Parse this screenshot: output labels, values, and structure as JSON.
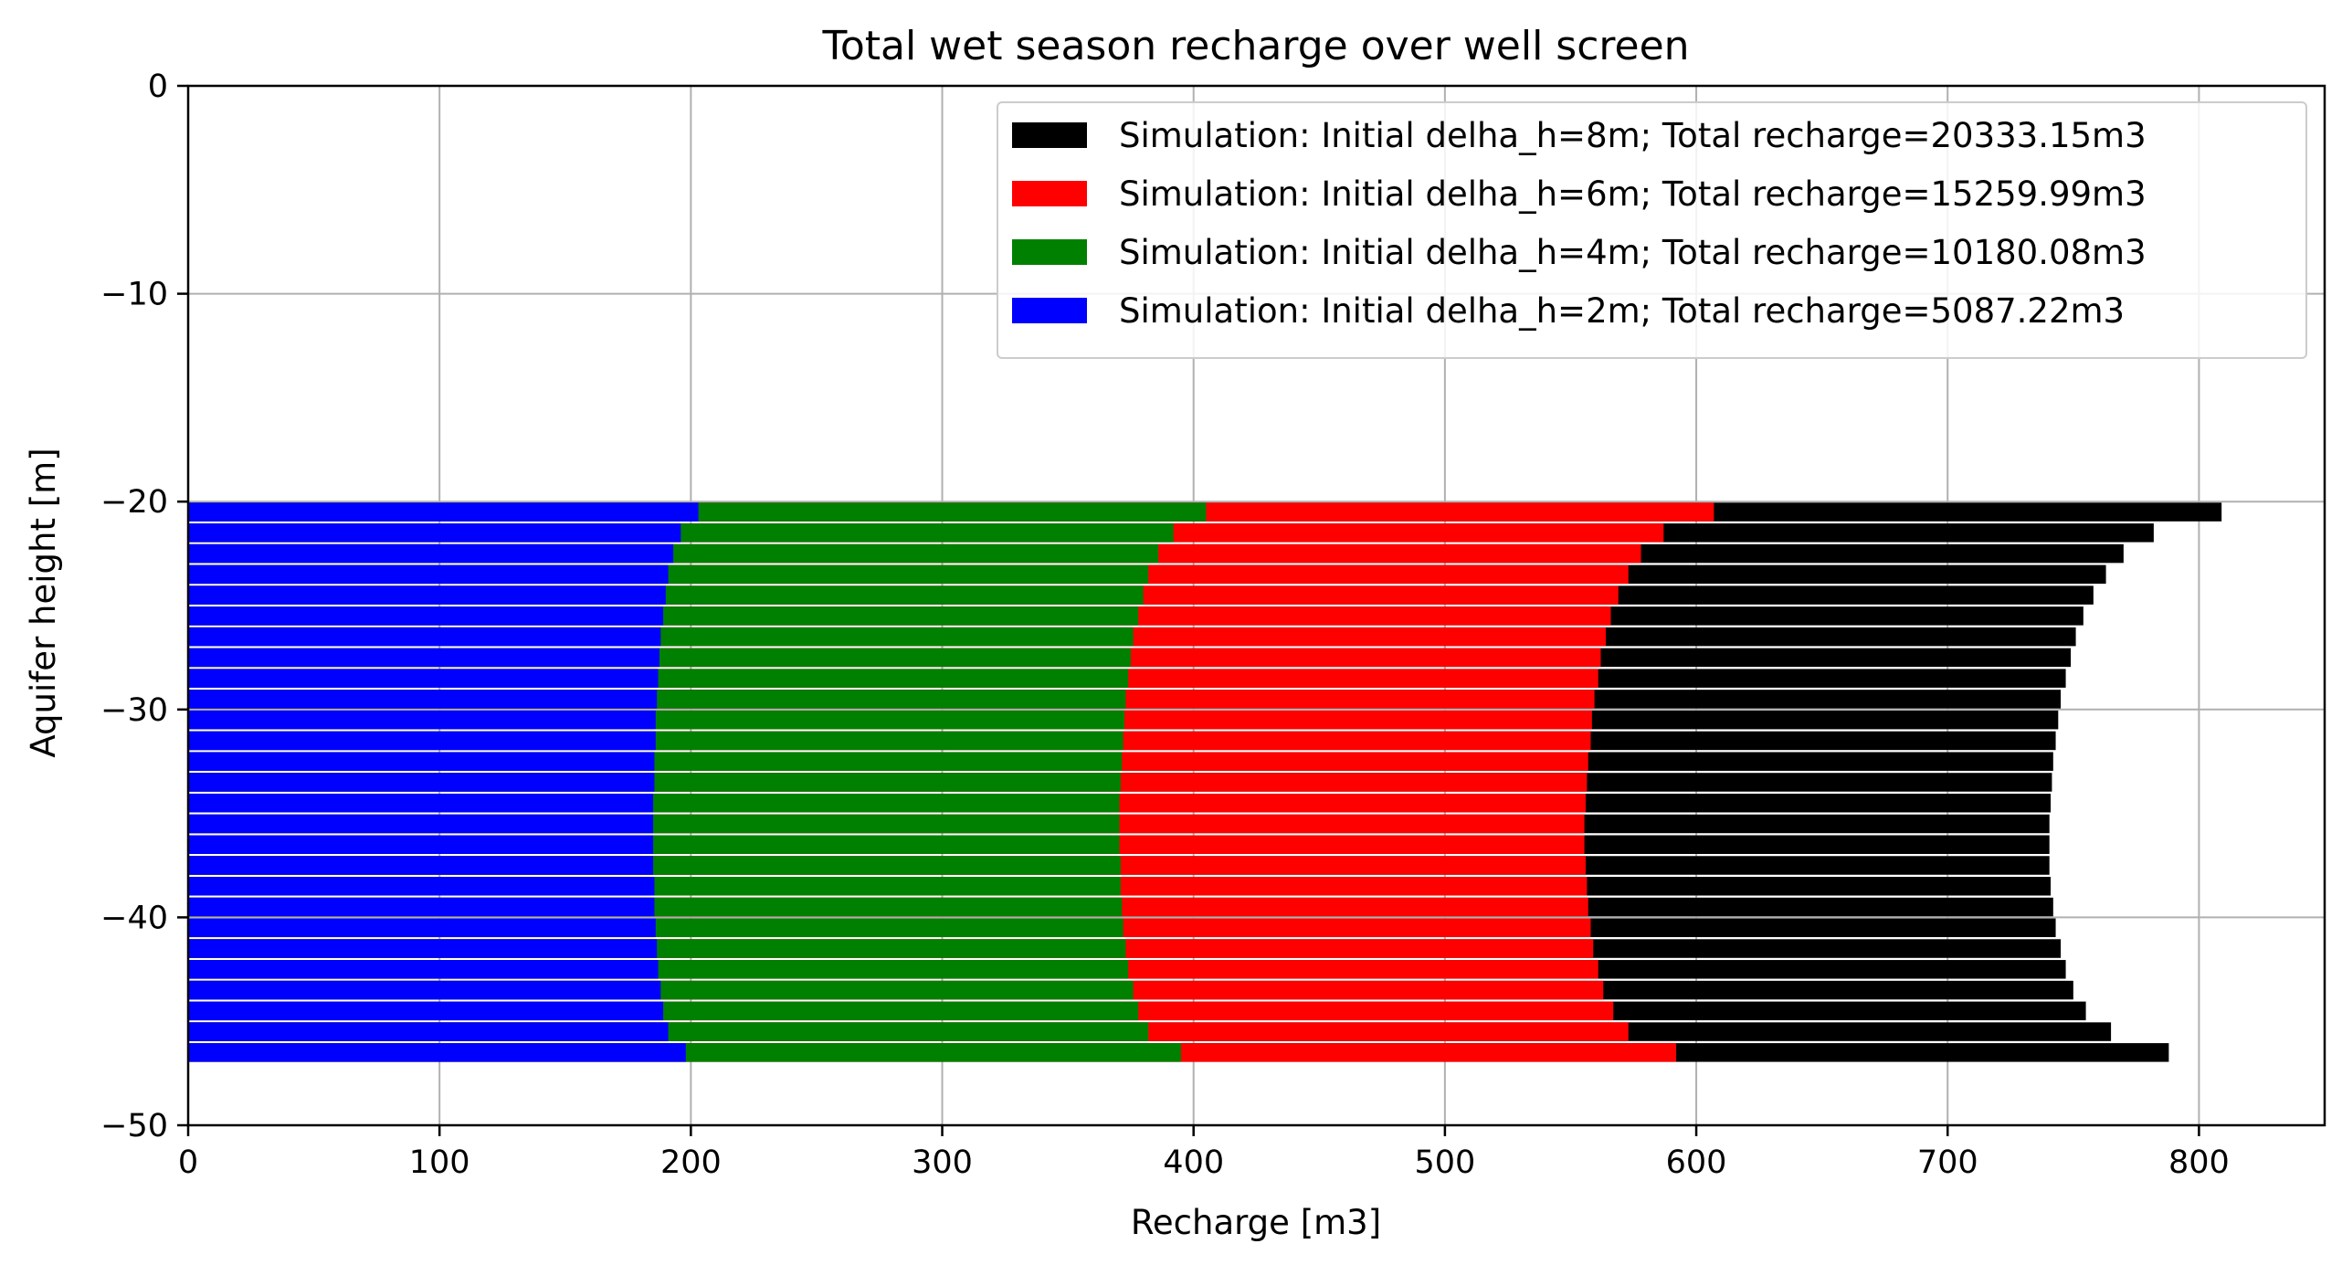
{
  "chart_data": {
    "type": "bar",
    "orientation": "horizontal",
    "stacked": false,
    "title": "Total wet season recharge over well screen",
    "xlabel": "Recharge [m3]",
    "ylabel": "Aquifer height [m]",
    "xlim": [
      0,
      850
    ],
    "ylim": [
      -50,
      0
    ],
    "xticks": [
      0,
      100,
      200,
      300,
      400,
      500,
      600,
      700,
      800
    ],
    "yticks": [
      0,
      -10,
      -20,
      -30,
      -40,
      -50
    ],
    "grid": true,
    "legend_position": "top-right",
    "bar_height": 0.9,
    "y": [
      -20.5,
      -21.5,
      -22.5,
      -23.5,
      -24.5,
      -25.5,
      -26.5,
      -27.5,
      -28.5,
      -29.5,
      -30.5,
      -31.5,
      -32.5,
      -33.5,
      -34.5,
      -35.5,
      -36.5,
      -37.5,
      -38.5,
      -39.5,
      -40.5,
      -41.5,
      -42.5,
      -43.5,
      -44.5,
      -45.5,
      -46.5
    ],
    "series": [
      {
        "name": "Simulation: Initial delha_h=8m; Total recharge=20333.15m3",
        "color": "#000000",
        "values": [
          809,
          782,
          770,
          763,
          758,
          754,
          751,
          749,
          747,
          745,
          744,
          743,
          742,
          741.5,
          741,
          740.5,
          740.5,
          740.5,
          741,
          742,
          743,
          745,
          747,
          750,
          755,
          765,
          788
        ]
      },
      {
        "name": "Simulation: Initial delha_h=6m; Total recharge=15259.99m3",
        "color": "#ff0000",
        "values": [
          607,
          587,
          578,
          573,
          569,
          566,
          564,
          562,
          561,
          559.5,
          558.5,
          558,
          557,
          556.5,
          556,
          555.5,
          555.5,
          556,
          556.5,
          557,
          558,
          559,
          561,
          563,
          567,
          573,
          592
        ]
      },
      {
        "name": "Simulation: Initial delha_h=4m; Total recharge=10180.08m3",
        "color": "#008000",
        "values": [
          405,
          392,
          386,
          382,
          380,
          378,
          376,
          375,
          374,
          373,
          372.5,
          372,
          371.5,
          371,
          370.5,
          370.5,
          370.5,
          371,
          371,
          371.5,
          372,
          373,
          374,
          376,
          378,
          382,
          395
        ]
      },
      {
        "name": "Simulation: Initial delha_h=2m; Total recharge=5087.22m3",
        "color": "#0000ff",
        "values": [
          203,
          196,
          193,
          191,
          190,
          189,
          188,
          187.5,
          187,
          186.5,
          186,
          186,
          185.5,
          185.5,
          185,
          185,
          185,
          185,
          185.5,
          185.5,
          186,
          186.5,
          187,
          188,
          189,
          191,
          198
        ]
      }
    ]
  }
}
